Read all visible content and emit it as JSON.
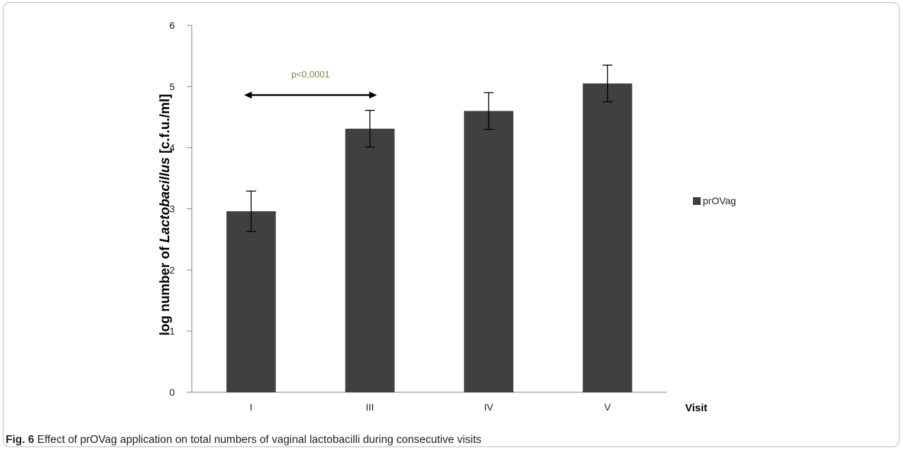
{
  "chart_data": {
    "type": "bar",
    "categories": [
      "I",
      "III",
      "IV",
      "V"
    ],
    "series": [
      {
        "name": "prOVag",
        "values": [
          2.96,
          4.31,
          4.6,
          5.05
        ],
        "errors": [
          0.33,
          0.3,
          0.3,
          0.3
        ]
      }
    ],
    "ylim": [
      0,
      6
    ],
    "yticks": [
      "0",
      "1",
      "2",
      "3",
      "4",
      "5",
      "6"
    ],
    "ylabel_prefix": "log number of ",
    "ylabel_italic": "Lactobacillus",
    "ylabel_suffix": " [c.f.u./ml]",
    "xlabel": "Visit",
    "legend_position": "right",
    "annotation": {
      "text": "p<0,0001",
      "from": "I",
      "to": "III",
      "y": 4.86
    },
    "colors": {
      "bar": "#404040",
      "annotation_text": "#7a8b3a"
    },
    "grid": false
  },
  "caption": {
    "label": "Fig. 6",
    "text": " Effect of prOVag application on total numbers of vaginal lactobacilli during consecutive visits"
  }
}
